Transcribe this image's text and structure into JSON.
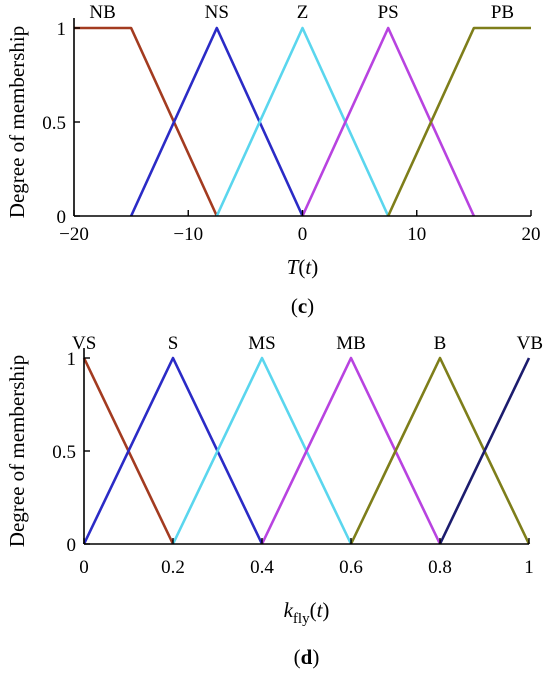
{
  "chart_data": [
    {
      "type": "line",
      "panel_label": "c",
      "xlabel_main": "T",
      "xlabel_arg": "(t)",
      "ylabel": "Degree of membership",
      "xlim": [
        -20,
        20
      ],
      "ylim": [
        0,
        1
      ],
      "xticks": [
        -20,
        -10,
        0,
        10,
        20
      ],
      "xtick_labels": [
        "−20",
        "−10",
        "0",
        "10",
        "20"
      ],
      "yticks": [
        0,
        0.5,
        1
      ],
      "ytick_labels": [
        "0",
        "0.5",
        "1"
      ],
      "grid": false,
      "series": [
        {
          "name": "NB",
          "color": "#a33b20",
          "x": [
            -20,
            -15,
            -7.5
          ],
          "y": [
            1,
            1,
            0
          ]
        },
        {
          "name": "NS",
          "color": "#2b2bc6",
          "x": [
            -15,
            -7.5,
            0
          ],
          "y": [
            0,
            1,
            0
          ]
        },
        {
          "name": "Z",
          "color": "#5ad6ee",
          "x": [
            -7.5,
            0,
            7.5
          ],
          "y": [
            0,
            1,
            0
          ]
        },
        {
          "name": "PS",
          "color": "#b843e0",
          "x": [
            0,
            7.5,
            15
          ],
          "y": [
            0,
            1,
            0
          ]
        },
        {
          "name": "PB",
          "color": "#7e7e1a",
          "x": [
            7.5,
            15,
            20
          ],
          "y": [
            0,
            1,
            1
          ]
        }
      ]
    },
    {
      "type": "line",
      "panel_label": "d",
      "xlabel_main": "k",
      "xlabel_sub": "fly",
      "xlabel_arg": "(t)",
      "ylabel": "Degree of membership",
      "xlim": [
        0,
        1
      ],
      "ylim": [
        0,
        1
      ],
      "xticks": [
        0,
        0.2,
        0.4,
        0.6,
        0.8,
        1
      ],
      "xtick_labels": [
        "0",
        "0.2",
        "0.4",
        "0.6",
        "0.8",
        "1"
      ],
      "yticks": [
        0,
        0.5,
        1
      ],
      "ytick_labels": [
        "0",
        "0.5",
        "1"
      ],
      "grid": false,
      "series": [
        {
          "name": "VS",
          "color": "#a33b20",
          "x": [
            0,
            0.2
          ],
          "y": [
            1,
            0
          ]
        },
        {
          "name": "S",
          "color": "#2b2bc6",
          "x": [
            0,
            0.2,
            0.4
          ],
          "y": [
            0,
            1,
            0
          ]
        },
        {
          "name": "MS",
          "color": "#5ad6ee",
          "x": [
            0.2,
            0.4,
            0.6
          ],
          "y": [
            0,
            1,
            0
          ]
        },
        {
          "name": "MB",
          "color": "#b843e0",
          "x": [
            0.4,
            0.6,
            0.8
          ],
          "y": [
            0,
            1,
            0
          ]
        },
        {
          "name": "B",
          "color": "#7e7e1a",
          "x": [
            0.6,
            0.8,
            1.0
          ],
          "y": [
            0,
            1,
            0
          ]
        },
        {
          "name": "VB",
          "color": "#1c1c6e",
          "x": [
            0.8,
            1.0
          ],
          "y": [
            0,
            1
          ]
        }
      ]
    }
  ]
}
